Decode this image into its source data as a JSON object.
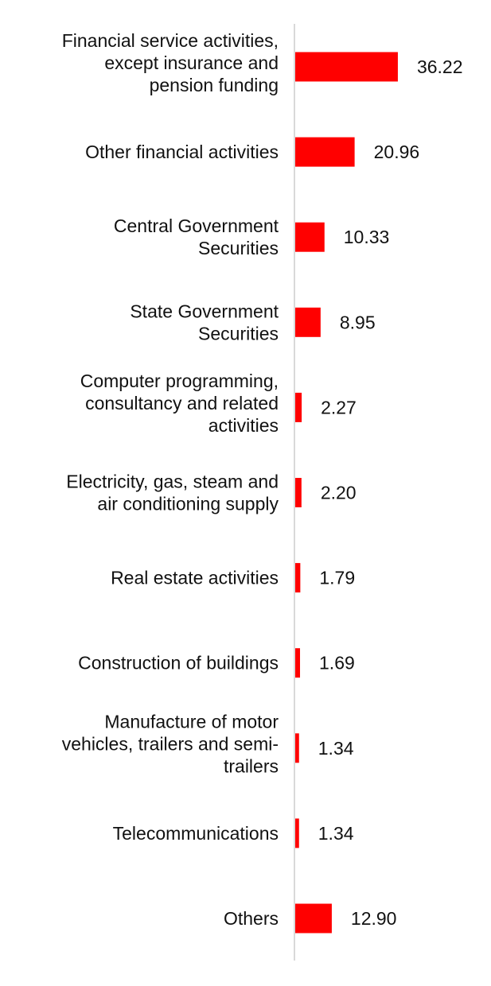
{
  "chart_data": {
    "type": "bar",
    "orientation": "horizontal",
    "title": "",
    "xlabel": "",
    "ylabel": "",
    "xlim": [
      0,
      40
    ],
    "grid": false,
    "bar_color": "#ff0000",
    "axis_color": "#d9d9d9",
    "categories": [
      "Financial service activities, except insurance and pension funding",
      "Other financial activities",
      "Central Government Securities",
      "State Government Securities",
      "Computer programming, consultancy and related activities",
      "Electricity, gas, steam and air conditioning supply",
      "Real estate activities",
      "Construction of buildings",
      "Manufacture of motor vehicles, trailers and semi-trailers",
      "Telecommunications",
      "Others"
    ],
    "category_lines": [
      [
        "Financial service activities,",
        "except insurance and",
        "pension funding"
      ],
      [
        "Other financial activities"
      ],
      [
        "Central Government",
        "Securities"
      ],
      [
        "State Government",
        "Securities"
      ],
      [
        "Computer programming,",
        "consultancy and related",
        "activities"
      ],
      [
        "Electricity, gas, steam and",
        "air conditioning supply"
      ],
      [
        "Real estate activities"
      ],
      [
        "Construction of buildings"
      ],
      [
        "Manufacture of motor",
        "vehicles, trailers and semi-",
        "trailers"
      ],
      [
        "Telecommunications"
      ],
      [
        "Others"
      ]
    ],
    "values": [
      36.22,
      20.96,
      10.33,
      8.95,
      2.27,
      2.2,
      1.79,
      1.69,
      1.34,
      1.34,
      12.9
    ],
    "value_labels": [
      "36.22",
      "20.96",
      "10.33",
      "8.95",
      "2.27",
      "2.20",
      "1.79",
      "1.69",
      "1.34",
      "1.34",
      "12.90"
    ]
  }
}
